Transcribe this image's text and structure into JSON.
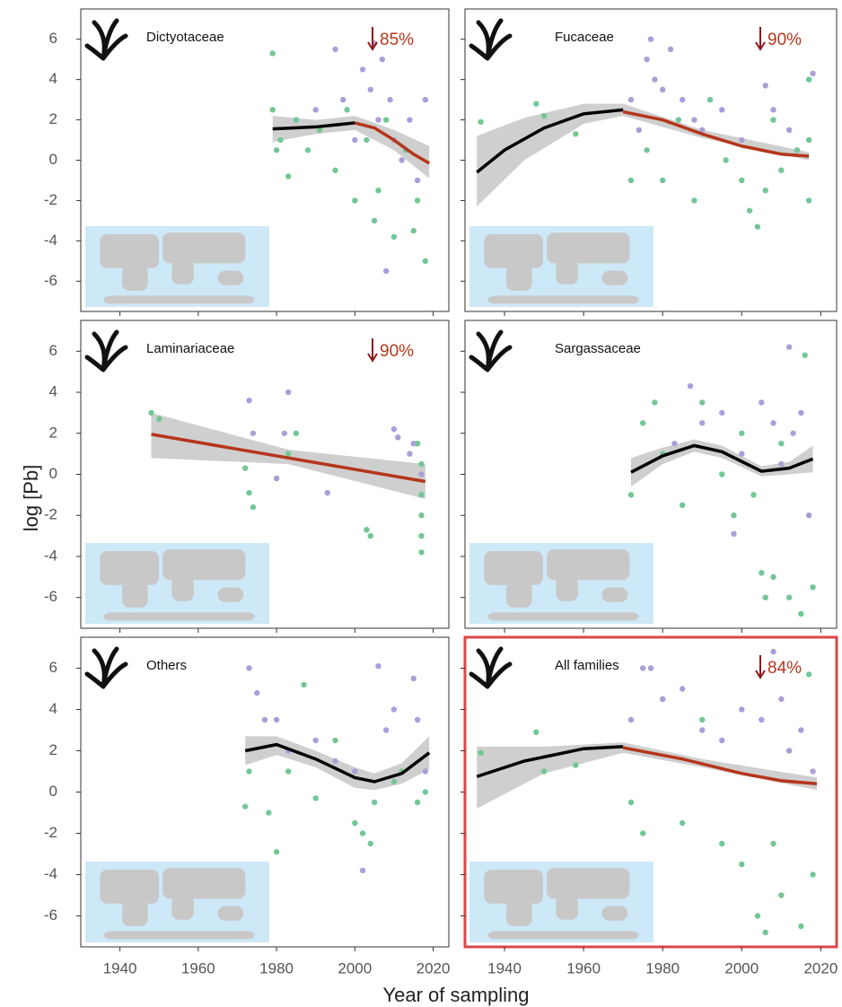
{
  "ylabel": "log [Pb]",
  "xlabel": "Year of sampling",
  "chart_data": [
    {
      "type": "scatter",
      "title": "Dictyotaceae",
      "annotation": "85%",
      "xlim": [
        1930,
        2024
      ],
      "ylim": [
        -7.5,
        7.5
      ],
      "xticks": [
        1940,
        1960,
        1980,
        2000,
        2020
      ],
      "yticks": [
        -6,
        -4,
        -2,
        0,
        2,
        4,
        6
      ],
      "series": [
        {
          "color": "#72c796",
          "x": [
            1979,
            1979,
            1980,
            1981,
            1983,
            1985,
            1988,
            1991,
            1995,
            1998,
            2000,
            2003,
            2005,
            2006,
            2008,
            2010,
            2013,
            2015,
            2016,
            2018
          ],
          "values": [
            5.3,
            2.5,
            0.5,
            1.0,
            -0.8,
            2.0,
            0.5,
            1.5,
            -0.5,
            2.5,
            -2.0,
            1.0,
            -3.0,
            -1.5,
            2.0,
            -3.8,
            0.5,
            -3.5,
            -2.0,
            -5.0
          ]
        },
        {
          "color": "#ab9ed8",
          "x": [
            1990,
            1995,
            1997,
            2000,
            2002,
            2004,
            2005,
            2006,
            2007,
            2008,
            2009,
            2010,
            2012,
            2014,
            2016,
            2018
          ],
          "values": [
            2.5,
            5.5,
            3.0,
            1.0,
            4.5,
            3.5,
            5.8,
            2.0,
            5.0,
            -5.5,
            3.0,
            1.0,
            0.0,
            2.0,
            -1.0,
            3.0
          ]
        }
      ],
      "band": {
        "color": "#cfcfcf",
        "x": [
          1979,
          1990,
          2000,
          2010,
          2019
        ],
        "lower": [
          0.9,
          1.3,
          1.5,
          0.5,
          -0.9
        ],
        "upper": [
          2.2,
          2.0,
          2.2,
          1.5,
          0.7
        ]
      },
      "fit_lines": [
        {
          "color": "#000000",
          "x": [
            1979,
            1990,
            2000
          ],
          "values": [
            1.55,
            1.65,
            1.85
          ]
        },
        {
          "color": "#b5361b",
          "x": [
            2000,
            2005,
            2010,
            2015,
            2019
          ],
          "values": [
            1.85,
            1.6,
            1.0,
            0.3,
            -0.15
          ]
        }
      ]
    },
    {
      "type": "scatter",
      "title": "Fucaceae",
      "annotation": "90%",
      "xlim": [
        1930,
        2024
      ],
      "ylim": [
        -7.5,
        7.5
      ],
      "xticks": [
        1940,
        1960,
        1980,
        2000,
        2020
      ],
      "yticks": [
        -6,
        -4,
        -2,
        0,
        2,
        4,
        6
      ],
      "series": [
        {
          "color": "#72c796",
          "x": [
            1934,
            1948,
            1950,
            1958,
            1972,
            1976,
            1980,
            1984,
            1988,
            1992,
            1996,
            2000,
            2002,
            2004,
            2006,
            2008,
            2010,
            2014,
            2017,
            2017,
            2017
          ],
          "values": [
            1.9,
            2.8,
            2.2,
            1.3,
            -1.0,
            0.5,
            -1.0,
            2.0,
            -2.0,
            3.0,
            0.0,
            -1.0,
            -2.5,
            -3.3,
            -1.5,
            2.0,
            -0.5,
            0.5,
            4.0,
            -2.0,
            1.0
          ]
        },
        {
          "color": "#ab9ed8",
          "x": [
            1972,
            1974,
            1976,
            1977,
            1978,
            1980,
            1982,
            1985,
            1988,
            1990,
            1995,
            2000,
            2006,
            2008,
            2012,
            2018
          ],
          "values": [
            3.0,
            1.5,
            5.0,
            6.0,
            4.0,
            3.5,
            5.5,
            3.0,
            2.0,
            1.5,
            2.5,
            1.0,
            3.7,
            2.5,
            1.5,
            4.3
          ]
        }
      ],
      "band": {
        "color": "#cfcfcf",
        "x": [
          1933,
          1945,
          1960,
          1970,
          1990,
          2017
        ],
        "lower": [
          -2.3,
          0.0,
          1.8,
          2.2,
          1.1,
          0.0
        ],
        "upper": [
          1.2,
          2.1,
          2.8,
          2.8,
          1.5,
          0.4
        ]
      },
      "fit_lines": [
        {
          "color": "#000000",
          "x": [
            1933,
            1940,
            1950,
            1960,
            1970
          ],
          "values": [
            -0.6,
            0.5,
            1.6,
            2.3,
            2.5
          ]
        },
        {
          "color": "#b5361b",
          "x": [
            1970,
            1980,
            1990,
            2000,
            2010,
            2017
          ],
          "values": [
            2.4,
            2.0,
            1.3,
            0.7,
            0.3,
            0.2
          ]
        }
      ]
    },
    {
      "type": "scatter",
      "title": "Laminariaceae",
      "annotation": "90%",
      "xlim": [
        1930,
        2024
      ],
      "ylim": [
        -7.5,
        7.5
      ],
      "xticks": [
        1940,
        1960,
        1980,
        2000,
        2020
      ],
      "yticks": [
        -6,
        -4,
        -2,
        0,
        2,
        4,
        6
      ],
      "series": [
        {
          "color": "#72c796",
          "x": [
            1948,
            1950,
            1972,
            1973,
            1974,
            1983,
            1985,
            2003,
            2004,
            2016,
            2017,
            2017,
            2017,
            2017,
            2017
          ],
          "values": [
            3.0,
            2.7,
            0.3,
            -0.9,
            -1.6,
            1.0,
            2.0,
            -2.7,
            -3.0,
            1.5,
            0.5,
            -1.0,
            -2.0,
            -3.0,
            -3.8
          ]
        },
        {
          "color": "#ab9ed8",
          "x": [
            1973,
            1974,
            1980,
            1982,
            1983,
            1993,
            2010,
            2011,
            2014,
            2015,
            2017
          ],
          "values": [
            3.6,
            2.0,
            -0.2,
            2.0,
            4.0,
            -0.9,
            2.2,
            1.8,
            1.0,
            1.5,
            0.0
          ]
        }
      ],
      "band": {
        "color": "#cfcfcf",
        "x": [
          1948,
          1983,
          2018
        ],
        "lower": [
          0.8,
          0.5,
          -1.2
        ],
        "upper": [
          3.0,
          1.2,
          0.5
        ]
      },
      "fit_lines": [
        {
          "color": "#b5361b",
          "x": [
            1948,
            2018
          ],
          "values": [
            1.95,
            -0.35
          ]
        }
      ]
    },
    {
      "type": "scatter",
      "title": "Sargassaceae",
      "xlim": [
        1930,
        2024
      ],
      "ylim": [
        -7.5,
        7.5
      ],
      "xticks": [
        1940,
        1960,
        1980,
        2000,
        2020
      ],
      "yticks": [
        -6,
        -4,
        -2,
        0,
        2,
        4,
        6
      ],
      "series": [
        {
          "color": "#72c796",
          "x": [
            1972,
            1975,
            1978,
            1980,
            1985,
            1990,
            1995,
            1998,
            2000,
            2003,
            2005,
            2006,
            2008,
            2010,
            2012,
            2015,
            2016,
            2018
          ],
          "values": [
            -1.0,
            2.5,
            3.5,
            1.0,
            -1.5,
            3.5,
            0.0,
            -2.0,
            2.0,
            -1.0,
            -4.8,
            -6.0,
            -5.0,
            1.5,
            -6.0,
            -6.8,
            5.8,
            -5.5
          ]
        },
        {
          "color": "#ab9ed8",
          "x": [
            1983,
            1987,
            1990,
            1995,
            1998,
            2000,
            2005,
            2008,
            2010,
            2012,
            2013,
            2015,
            2017
          ],
          "values": [
            1.5,
            4.3,
            2.5,
            3.0,
            -2.9,
            1.0,
            3.5,
            2.5,
            0.5,
            6.2,
            2.0,
            3.0,
            -2.0
          ]
        }
      ],
      "band": {
        "color": "#cfcfcf",
        "x": [
          1972,
          1980,
          1988,
          1995,
          2005,
          2012,
          2018
        ],
        "lower": [
          -0.6,
          0.5,
          1.1,
          0.8,
          -0.1,
          0.0,
          0.1
        ],
        "upper": [
          0.8,
          1.3,
          1.7,
          1.4,
          0.4,
          0.6,
          1.4
        ]
      },
      "fit_lines": [
        {
          "color": "#000000",
          "x": [
            1972,
            1980,
            1988,
            1995,
            2005,
            2012,
            2018
          ],
          "values": [
            0.1,
            0.9,
            1.4,
            1.1,
            0.15,
            0.3,
            0.75
          ]
        }
      ]
    },
    {
      "type": "scatter",
      "title": "Others",
      "xlim": [
        1930,
        2024
      ],
      "ylim": [
        -7.5,
        7.5
      ],
      "xticks": [
        1940,
        1960,
        1980,
        2000,
        2020
      ],
      "yticks": [
        -6,
        -4,
        -2,
        0,
        2,
        4,
        6
      ],
      "series": [
        {
          "color": "#72c796",
          "x": [
            1972,
            1973,
            1978,
            1980,
            1983,
            1987,
            1990,
            1995,
            2000,
            2002,
            2004,
            2005,
            2010,
            2012,
            2016,
            2018
          ],
          "values": [
            -0.7,
            1.0,
            -1.0,
            -2.9,
            1.0,
            5.2,
            -0.3,
            2.5,
            -1.5,
            -2.0,
            -2.5,
            -0.5,
            0.5,
            1.0,
            -0.5,
            0.0
          ]
        },
        {
          "color": "#ab9ed8",
          "x": [
            1973,
            1975,
            1977,
            1980,
            1983,
            1990,
            1995,
            2000,
            2002,
            2006,
            2008,
            2010,
            2015,
            2016,
            2018
          ],
          "values": [
            6.0,
            4.8,
            3.5,
            3.5,
            2.0,
            2.5,
            1.5,
            1.0,
            -3.8,
            6.1,
            3.0,
            4.0,
            5.5,
            3.5,
            1.0
          ]
        }
      ],
      "band": {
        "color": "#cfcfcf",
        "x": [
          1972,
          1980,
          1990,
          2000,
          2005,
          2012,
          2019
        ],
        "lower": [
          1.3,
          1.8,
          1.2,
          0.2,
          0.1,
          0.4,
          1.1
        ],
        "upper": [
          2.7,
          2.7,
          2.0,
          1.2,
          0.9,
          1.4,
          2.7
        ]
      },
      "fit_lines": [
        {
          "color": "#000000",
          "x": [
            1972,
            1980,
            1990,
            2000,
            2005,
            2012,
            2019
          ],
          "values": [
            2.0,
            2.3,
            1.6,
            0.7,
            0.5,
            0.9,
            1.9
          ]
        }
      ]
    },
    {
      "type": "scatter",
      "title": "All families",
      "annotation": "84%",
      "border_color": "#d9484a",
      "xlim": [
        1930,
        2024
      ],
      "ylim": [
        -7.5,
        7.5
      ],
      "xticks": [
        1940,
        1960,
        1980,
        2000,
        2020
      ],
      "yticks": [
        -6,
        -4,
        -2,
        0,
        2,
        4,
        6
      ],
      "series": [
        {
          "color": "#72c796",
          "x": [
            1934,
            1948,
            1950,
            1958,
            1972,
            1975,
            1980,
            1985,
            1990,
            1995,
            2000,
            2004,
            2006,
            2008,
            2010,
            2015,
            2017,
            2018
          ],
          "values": [
            1.9,
            2.9,
            1.0,
            1.3,
            -0.5,
            -2.0,
            4.5,
            -1.5,
            3.5,
            -2.5,
            -3.5,
            -6.0,
            -6.8,
            -2.5,
            -5.0,
            -6.5,
            5.7,
            -4.0
          ]
        },
        {
          "color": "#ab9ed8",
          "x": [
            1972,
            1975,
            1977,
            1980,
            1985,
            1990,
            1995,
            2000,
            2005,
            2008,
            2010,
            2012,
            2015,
            2018
          ],
          "values": [
            3.5,
            6.0,
            6.0,
            4.5,
            5.0,
            3.0,
            2.5,
            4.0,
            3.5,
            6.8,
            4.5,
            2.0,
            3.0,
            1.0
          ]
        }
      ],
      "band": {
        "color": "#cfcfcf",
        "x": [
          1933,
          1950,
          1970,
          1990,
          2019
        ],
        "lower": [
          -0.8,
          0.9,
          1.9,
          1.2,
          0.1
        ],
        "upper": [
          2.2,
          2.2,
          2.4,
          1.6,
          0.7
        ]
      },
      "fit_lines": [
        {
          "color": "#000000",
          "x": [
            1933,
            1945,
            1960,
            1970
          ],
          "values": [
            0.75,
            1.5,
            2.1,
            2.2
          ]
        },
        {
          "color": "#b5361b",
          "x": [
            1970,
            1985,
            2000,
            2010,
            2019
          ],
          "values": [
            2.15,
            1.6,
            0.9,
            0.55,
            0.4
          ]
        }
      ]
    }
  ]
}
